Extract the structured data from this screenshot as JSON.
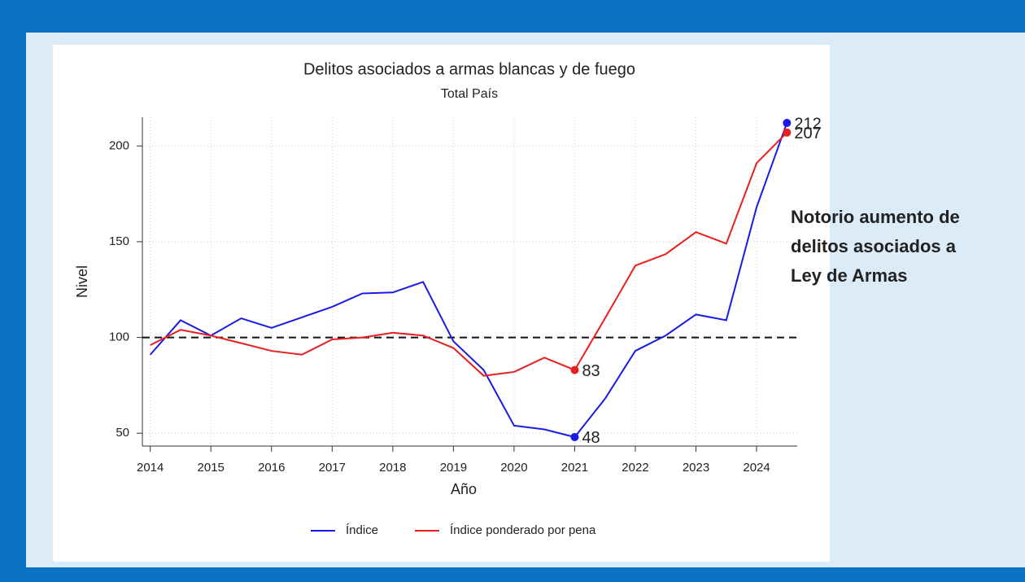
{
  "chart_data": {
    "type": "line",
    "title": "Delitos asociados a armas blancas y de fuego",
    "subtitle": "Total País",
    "x_label": "Año",
    "y_label": "Nivel",
    "x": [
      2014,
      2014.5,
      2015,
      2015.5,
      2016,
      2016.5,
      2017,
      2017.5,
      2018,
      2018.5,
      2019,
      2019.5,
      2020,
      2020.5,
      2021,
      2021.5,
      2022,
      2022.5,
      2023,
      2023.5,
      2024,
      2024.5
    ],
    "series": [
      {
        "name": "Índice",
        "color": "#1a1ae6",
        "labeled_points": [
          14,
          21
        ],
        "values": [
          91,
          109,
          101,
          110,
          105,
          110.5,
          116,
          123,
          123.5,
          129,
          98,
          83,
          54,
          52,
          48,
          68,
          93,
          101,
          112,
          109,
          168,
          212
        ]
      },
      {
        "name": "Índice ponderado por pena",
        "color": "#e62020",
        "labeled_points": [
          14,
          21
        ],
        "values": [
          96,
          104,
          101,
          97,
          93,
          91,
          99,
          100,
          102.5,
          101,
          94.5,
          80,
          82,
          89.5,
          83,
          110,
          137.5,
          143.5,
          155,
          149,
          191,
          207
        ]
      }
    ],
    "xlim": [
      2013.87,
      2024.67
    ],
    "xticks": [
      2014,
      2015,
      2016,
      2017,
      2018,
      2019,
      2020,
      2021,
      2022,
      2023,
      2024
    ],
    "ylim": [
      43.3,
      215
    ],
    "yticks": [
      50,
      100,
      150,
      200
    ],
    "reference_line": 100,
    "grid": true,
    "legend": "bottom",
    "annotation": [
      "Notorio aumento de",
      "delitos asociados a",
      "Ley de Armas"
    ]
  }
}
